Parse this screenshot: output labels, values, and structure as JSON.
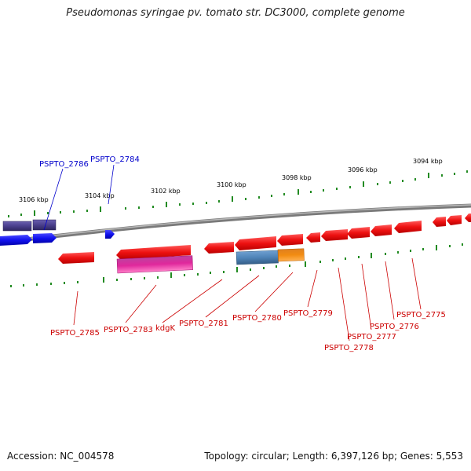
{
  "title": "Pseudomonas syringae pv. tomato str. DC3000, complete genome",
  "footer": {
    "accession": "Accession: NC_004578",
    "stats": "Topology: circular; Length: 6,397,126 bp; Genes: 5,553"
  },
  "colors": {
    "backbone": "#808080",
    "tick": "#228b22",
    "label_blue": "#0000cc",
    "label_red": "#cc0000",
    "gene_red": "#ee1111",
    "gene_blue": "#1111ee",
    "gene_purple": "#4a3f8c",
    "gene_magenta": "#e0289c",
    "gene_steel": "#4f84b8",
    "gene_orange": "#f28c12"
  },
  "ticks": [
    "3106 kbp",
    "3104 kbp",
    "3102 kbp",
    "3100 kbp",
    "3098 kbp",
    "3096 kbp",
    "3094 kbp"
  ],
  "gene_labels": {
    "PSPTO_2786": "PSPTO_2786",
    "PSPTO_2784": "PSPTO_2784",
    "PSPTO_2785": "PSPTO_2785",
    "PSPTO_2783": "PSPTO_2783",
    "kdgK": "kdgK",
    "PSPTO_2781": "PSPTO_2781",
    "PSPTO_2780": "PSPTO_2780",
    "PSPTO_2779": "PSPTO_2779",
    "PSPTO_2778": "PSPTO_2778",
    "PSPTO_2777": "PSPTO_2777",
    "PSPTO_2776": "PSPTO_2776",
    "PSPTO_2775": "PSPTO_2775"
  }
}
